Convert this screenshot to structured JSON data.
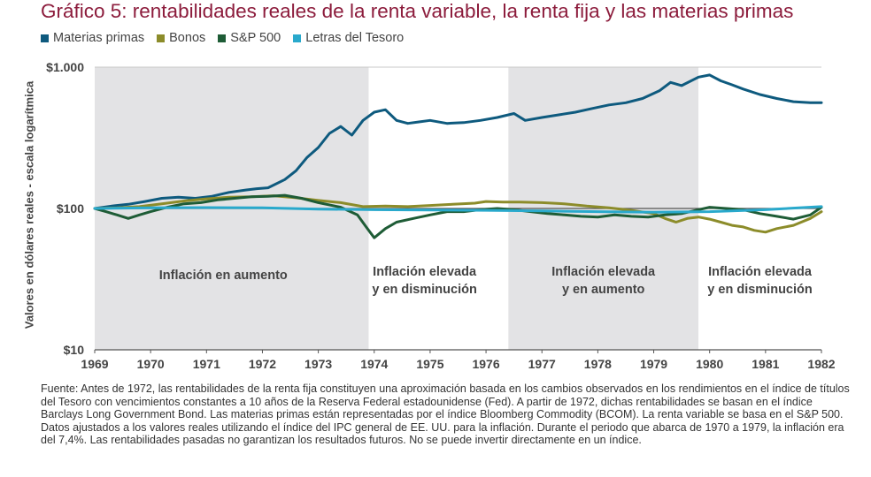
{
  "chart_data": {
    "type": "line",
    "title": "Gráfico 5: rentabilidades reales de la renta variable, la renta fija y las materias primas",
    "ylabel": "Valores en dólares reales - escala logarítmica",
    "xlabel": "",
    "yscale": "log",
    "ylim": [
      10,
      1000
    ],
    "xlim": [
      1969,
      1982
    ],
    "y_ticks": [
      {
        "value": 10,
        "label": "$10"
      },
      {
        "value": 100,
        "label": "$100"
      },
      {
        "value": 1000,
        "label": "$1.000"
      }
    ],
    "x_ticks": [
      "1969",
      "1970",
      "1971",
      "1972",
      "1973",
      "1974",
      "1975",
      "1976",
      "1977",
      "1978",
      "1979",
      "1980",
      "1981",
      "1982"
    ],
    "grid": "horizontal",
    "legend_position": "top-left",
    "shaded_periods": [
      {
        "start": 1969.0,
        "end": 1973.9,
        "label_line1": "Inflación en aumento",
        "label_line2": ""
      },
      {
        "start": 1976.4,
        "end": 1979.8,
        "label_line1": "Inflación elevada",
        "label_line2": "y en aumento"
      }
    ],
    "period_labels": [
      {
        "x": 1971.3,
        "line1": "Inflación en aumento",
        "line2": ""
      },
      {
        "x": 1974.9,
        "line1": "Inflación elevada",
        "line2": "y en disminución"
      },
      {
        "x": 1978.1,
        "line1": "Inflación elevada",
        "line2": "y en aumento"
      },
      {
        "x": 1980.9,
        "line1": "Inflación elevada",
        "line2": "y en disminución"
      }
    ],
    "reference_line": {
      "value": 100,
      "color": "#555555"
    },
    "series": [
      {
        "name": "Materias primas",
        "color": "#0e5a7e",
        "points": [
          [
            1969.0,
            100
          ],
          [
            1969.3,
            104
          ],
          [
            1969.6,
            107
          ],
          [
            1969.9,
            112
          ],
          [
            1970.2,
            118
          ],
          [
            1970.5,
            120
          ],
          [
            1970.8,
            118
          ],
          [
            1971.1,
            122
          ],
          [
            1971.4,
            130
          ],
          [
            1971.7,
            135
          ],
          [
            1971.9,
            138
          ],
          [
            1972.1,
            140
          ],
          [
            1972.4,
            160
          ],
          [
            1972.6,
            185
          ],
          [
            1972.8,
            230
          ],
          [
            1973.0,
            270
          ],
          [
            1973.2,
            340
          ],
          [
            1973.4,
            380
          ],
          [
            1973.6,
            330
          ],
          [
            1973.8,
            420
          ],
          [
            1974.0,
            480
          ],
          [
            1974.2,
            500
          ],
          [
            1974.4,
            420
          ],
          [
            1974.6,
            400
          ],
          [
            1974.8,
            410
          ],
          [
            1975.0,
            420
          ],
          [
            1975.3,
            400
          ],
          [
            1975.6,
            405
          ],
          [
            1975.9,
            420
          ],
          [
            1976.2,
            440
          ],
          [
            1976.5,
            470
          ],
          [
            1976.7,
            420
          ],
          [
            1977.0,
            440
          ],
          [
            1977.3,
            460
          ],
          [
            1977.6,
            480
          ],
          [
            1977.9,
            510
          ],
          [
            1978.2,
            540
          ],
          [
            1978.5,
            560
          ],
          [
            1978.8,
            600
          ],
          [
            1979.1,
            680
          ],
          [
            1979.3,
            780
          ],
          [
            1979.5,
            740
          ],
          [
            1979.8,
            850
          ],
          [
            1980.0,
            880
          ],
          [
            1980.2,
            800
          ],
          [
            1980.4,
            750
          ],
          [
            1980.6,
            700
          ],
          [
            1980.9,
            640
          ],
          [
            1981.2,
            600
          ],
          [
            1981.5,
            570
          ],
          [
            1981.8,
            560
          ],
          [
            1982.0,
            560
          ]
        ]
      },
      {
        "name": "Bonos",
        "color": "#8c8c2a",
        "points": [
          [
            1969.0,
            100
          ],
          [
            1969.4,
            101
          ],
          [
            1969.8,
            103
          ],
          [
            1970.2,
            108
          ],
          [
            1970.6,
            113
          ],
          [
            1971.0,
            117
          ],
          [
            1971.4,
            120
          ],
          [
            1971.8,
            121
          ],
          [
            1972.2,
            123
          ],
          [
            1972.6,
            119
          ],
          [
            1973.0,
            114
          ],
          [
            1973.4,
            110
          ],
          [
            1973.8,
            103
          ],
          [
            1974.2,
            104
          ],
          [
            1974.6,
            103
          ],
          [
            1975.0,
            105
          ],
          [
            1975.4,
            107
          ],
          [
            1975.8,
            109
          ],
          [
            1976.0,
            112
          ],
          [
            1976.3,
            111
          ],
          [
            1976.6,
            111
          ],
          [
            1977.0,
            110
          ],
          [
            1977.4,
            108
          ],
          [
            1977.8,
            104
          ],
          [
            1978.2,
            101
          ],
          [
            1978.6,
            97
          ],
          [
            1979.0,
            92
          ],
          [
            1979.2,
            85
          ],
          [
            1979.4,
            80
          ],
          [
            1979.6,
            85
          ],
          [
            1979.8,
            87
          ],
          [
            1980.0,
            84
          ],
          [
            1980.2,
            80
          ],
          [
            1980.4,
            76
          ],
          [
            1980.6,
            74
          ],
          [
            1980.8,
            70
          ],
          [
            1981.0,
            68
          ],
          [
            1981.2,
            72
          ],
          [
            1981.5,
            76
          ],
          [
            1981.8,
            85
          ],
          [
            1982.0,
            95
          ]
        ]
      },
      {
        "name": "S&P 500",
        "color": "#1e5c36",
        "points": [
          [
            1969.0,
            100
          ],
          [
            1969.2,
            95
          ],
          [
            1969.4,
            90
          ],
          [
            1969.6,
            85
          ],
          [
            1969.8,
            90
          ],
          [
            1970.0,
            95
          ],
          [
            1970.3,
            102
          ],
          [
            1970.6,
            108
          ],
          [
            1970.9,
            110
          ],
          [
            1971.2,
            115
          ],
          [
            1971.5,
            118
          ],
          [
            1971.8,
            121
          ],
          [
            1972.1,
            122
          ],
          [
            1972.4,
            124
          ],
          [
            1972.7,
            118
          ],
          [
            1973.0,
            110
          ],
          [
            1973.4,
            102
          ],
          [
            1973.7,
            90
          ],
          [
            1973.9,
            70
          ],
          [
            1974.0,
            62
          ],
          [
            1974.2,
            72
          ],
          [
            1974.4,
            80
          ],
          [
            1974.7,
            85
          ],
          [
            1975.0,
            90
          ],
          [
            1975.3,
            95
          ],
          [
            1975.6,
            95
          ],
          [
            1975.9,
            98
          ],
          [
            1976.2,
            100
          ],
          [
            1976.5,
            98
          ],
          [
            1976.8,
            95
          ],
          [
            1977.1,
            92
          ],
          [
            1977.4,
            90
          ],
          [
            1977.7,
            88
          ],
          [
            1978.0,
            87
          ],
          [
            1978.3,
            90
          ],
          [
            1978.6,
            88
          ],
          [
            1978.9,
            87
          ],
          [
            1979.2,
            90
          ],
          [
            1979.5,
            92
          ],
          [
            1979.8,
            98
          ],
          [
            1980.0,
            102
          ],
          [
            1980.3,
            100
          ],
          [
            1980.6,
            98
          ],
          [
            1980.9,
            92
          ],
          [
            1981.2,
            88
          ],
          [
            1981.5,
            84
          ],
          [
            1981.8,
            90
          ],
          [
            1982.0,
            102
          ]
        ]
      },
      {
        "name": "Letras del Tesoro",
        "color": "#29a9cc",
        "points": [
          [
            1969.0,
            100
          ],
          [
            1970.0,
            101
          ],
          [
            1971.0,
            101.5
          ],
          [
            1972.0,
            101
          ],
          [
            1973.0,
            99
          ],
          [
            1974.0,
            98
          ],
          [
            1975.0,
            97.5
          ],
          [
            1976.0,
            97
          ],
          [
            1977.0,
            96
          ],
          [
            1978.0,
            95
          ],
          [
            1979.0,
            94
          ],
          [
            1980.0,
            95
          ],
          [
            1981.0,
            98
          ],
          [
            1982.0,
            103
          ]
        ]
      }
    ]
  },
  "footnote": "Fuente: Antes de 1972, las rentabilidades de la renta fija constituyen una aproximación basada en los cambios observados en los rendimientos en el índice de títulos del Tesoro con vencimientos constantes a 10 años de la Reserva Federal estadounidense (Fed). A partir de 1972, dichas rentabilidades se basan en el índice Barclays Long Government Bond. Las materias primas están representadas por el índice Bloomberg Commodity (BCOM). La renta variable se basa en el S&P 500. Datos ajustados a los valores reales utilizando el índice del IPC general de EE. UU. para la inflación. Durante el periodo que abarca de 1970 a 1979, la inflación era del 7,4%. Las rentabilidades pasadas no garantizan los resultados futuros. No se puede invertir directamente en un índice."
}
